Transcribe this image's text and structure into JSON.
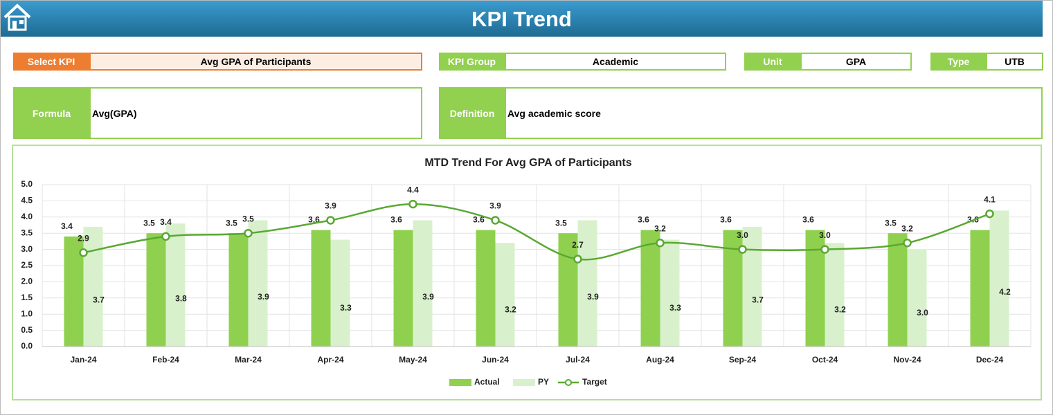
{
  "header": {
    "title": "KPI Trend"
  },
  "fields": {
    "select_kpi": {
      "label": "Select KPI",
      "value": "Avg GPA of Participants"
    },
    "kpi_group": {
      "label": "KPI Group",
      "value": "Academic"
    },
    "unit": {
      "label": "Unit",
      "value": "GPA"
    },
    "type": {
      "label": "Type",
      "value": "UTB"
    },
    "formula": {
      "label": "Formula",
      "value": "Avg(GPA)"
    },
    "definition": {
      "label": "Definition",
      "value": "Avg academic score"
    }
  },
  "chart_data": {
    "type": "bar",
    "title": "MTD Trend For Avg GPA of Participants",
    "categories": [
      "Jan-24",
      "Feb-24",
      "Mar-24",
      "Apr-24",
      "May-24",
      "Jun-24",
      "Jul-24",
      "Aug-24",
      "Sep-24",
      "Oct-24",
      "Nov-24",
      "Dec-24"
    ],
    "series": [
      {
        "name": "Actual",
        "type": "bar",
        "color": "#8fd14f",
        "values": [
          3.4,
          3.5,
          3.5,
          3.6,
          3.6,
          3.6,
          3.5,
          3.6,
          3.6,
          3.6,
          3.5,
          3.6
        ],
        "value_labels": [
          "3.4",
          "3.5",
          "3.5",
          "3.6",
          "3.6",
          "3.6",
          "3.5",
          "3.6",
          "3.6",
          "3.6",
          "3.5",
          "3.6"
        ]
      },
      {
        "name": "PY",
        "type": "bar",
        "color": "#d8f1cc",
        "values": [
          3.7,
          3.8,
          3.9,
          3.3,
          3.9,
          3.2,
          3.9,
          3.3,
          3.7,
          3.2,
          3.0,
          4.2
        ],
        "value_labels": [
          "3.7",
          "3.8",
          "3.9",
          "3.3",
          "3.9",
          "3.2",
          "3.9",
          "3.3",
          "3.7",
          "3.2",
          "3.0",
          "4.2"
        ]
      },
      {
        "name": "Target",
        "type": "line",
        "color": "#5aa832",
        "values": [
          2.9,
          3.4,
          3.5,
          3.9,
          4.4,
          3.9,
          2.7,
          3.2,
          3.0,
          3.0,
          3.2,
          4.1
        ],
        "value_labels": [
          "2.9",
          "3.4",
          "3.5",
          "3.9",
          "4.4",
          "3.9",
          "2.7",
          "3.2",
          "3.0",
          "3.0",
          "3.2",
          "4.1"
        ]
      }
    ],
    "ylim": [
      0,
      5
    ],
    "yticks": [
      {
        "value": 0,
        "label": "0.0"
      },
      {
        "value": 0.5,
        "label": "0.5"
      },
      {
        "value": 1,
        "label": "1.0"
      },
      {
        "value": 1.5,
        "label": "1.5"
      },
      {
        "value": 2,
        "label": "2.0"
      },
      {
        "value": 2.5,
        "label": "2.5"
      },
      {
        "value": 3,
        "label": "3.0"
      },
      {
        "value": 3.5,
        "label": "3.5"
      },
      {
        "value": 4,
        "label": "4.0"
      },
      {
        "value": 4.5,
        "label": "4.5"
      },
      {
        "value": 5,
        "label": "5.0"
      }
    ],
    "grid": true,
    "legend": "bottom"
  }
}
